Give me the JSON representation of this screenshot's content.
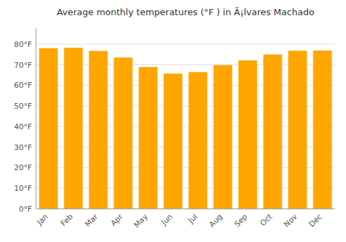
{
  "chart_data": {
    "type": "bar",
    "title": "Average monthly temperatures (°F ) in Ã¡lvares Machado",
    "categories": [
      "Jan",
      "Feb",
      "Mar",
      "Apr",
      "May",
      "Jun",
      "Jul",
      "Aug",
      "Sep",
      "Oct",
      "Nov",
      "Dec"
    ],
    "values": [
      78.0,
      78.2,
      76.7,
      73.5,
      68.9,
      65.7,
      66.4,
      69.8,
      72.1,
      75.0,
      76.8,
      76.9
    ],
    "color": "#FFA500",
    "ylim": [
      0,
      88
    ],
    "yticks": [
      {
        "value": 0,
        "label": "0°F"
      },
      {
        "value": 10,
        "label": "10°F"
      },
      {
        "value": 20,
        "label": "20°F"
      },
      {
        "value": 30,
        "label": "30°F"
      },
      {
        "value": 40,
        "label": "40°F"
      },
      {
        "value": 50,
        "label": "50°F"
      },
      {
        "value": 60,
        "label": "60°F"
      },
      {
        "value": 70,
        "label": "70°F"
      },
      {
        "value": 80,
        "label": "80°F"
      }
    ],
    "grid": true
  }
}
